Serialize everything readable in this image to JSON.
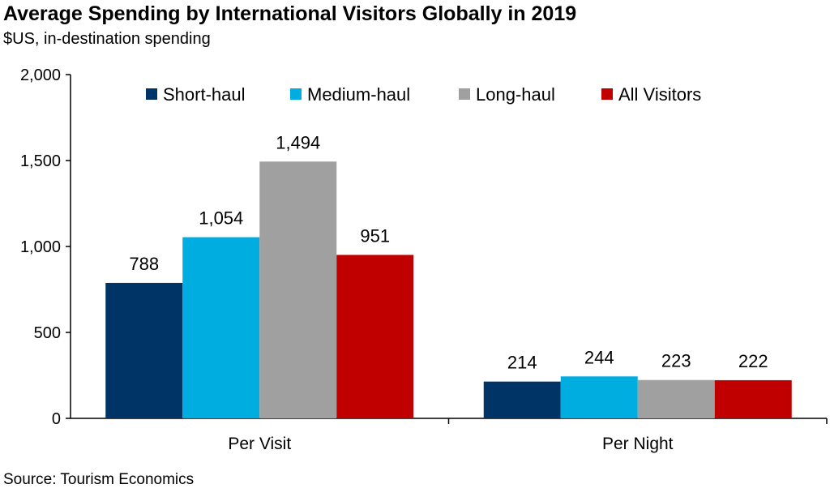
{
  "title": "Average Spending by International Visitors Globally in 2019",
  "subtitle": "$US, in-destination spending",
  "source": "Source: Tourism Economics",
  "chart_data": {
    "type": "bar",
    "categories": [
      "Per Visit",
      "Per Night"
    ],
    "series": [
      {
        "name": "Short-haul",
        "color": "#003366",
        "values": [
          788,
          214
        ],
        "labels": [
          "788",
          "214"
        ]
      },
      {
        "name": "Medium-haul",
        "color": "#00ADE0",
        "values": [
          1054,
          244
        ],
        "labels": [
          "1,054",
          "244"
        ]
      },
      {
        "name": "Long-haul",
        "color": "#A0A0A0",
        "values": [
          1494,
          223
        ],
        "labels": [
          "1,494",
          "223"
        ]
      },
      {
        "name": "All Visitors",
        "color": "#C00000",
        "values": [
          951,
          222
        ],
        "labels": [
          "951",
          "222"
        ]
      }
    ],
    "ylim": [
      0,
      2000
    ],
    "yticks": [
      0,
      500,
      1000,
      1500,
      2000
    ],
    "ytick_labels": [
      "0",
      "500",
      "1,000",
      "1,500",
      "2,000"
    ],
    "legend_position": "top",
    "grid": false
  }
}
